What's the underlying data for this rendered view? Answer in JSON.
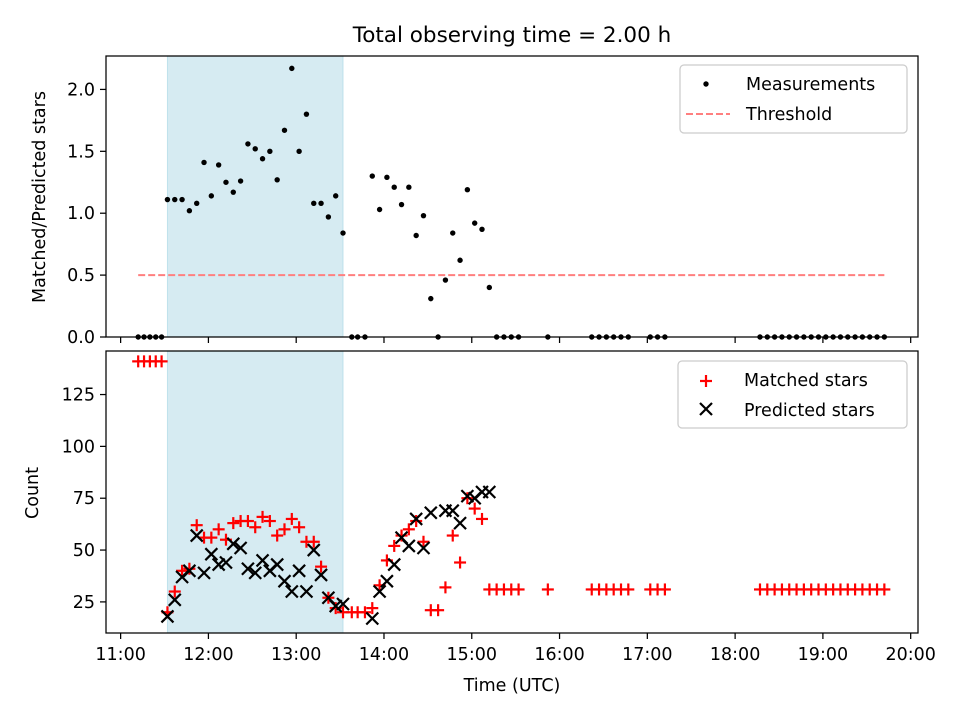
{
  "chart_data": [
    {
      "type": "scatter",
      "title": "Total observing time = 2.00 h",
      "xlabel": "",
      "ylabel": "Matched/Predicted stars",
      "ylim": [
        0,
        2.27
      ],
      "yticks": [
        0.0,
        0.5,
        1.0,
        1.5,
        2.0
      ],
      "yticklabels": [
        "0.0",
        "0.5",
        "1.0",
        "1.5",
        "2.0"
      ],
      "xlim": [
        "10:50",
        "20:05"
      ],
      "grid": false,
      "legend": "top-right",
      "shaded_span": {
        "from": "11:32",
        "to": "13:32",
        "color": "#add8e6"
      },
      "series": [
        {
          "name": "Measurements",
          "marker": "dot",
          "color": "#000000",
          "x": [
            "11:12",
            "11:16",
            "11:20",
            "11:24",
            "11:28",
            "11:32",
            "11:37",
            "11:42",
            "11:47",
            "11:52",
            "11:57",
            "12:02",
            "12:07",
            "12:12",
            "12:17",
            "12:22",
            "12:27",
            "12:32",
            "12:37",
            "12:42",
            "12:47",
            "12:52",
            "12:57",
            "13:02",
            "13:07",
            "13:12",
            "13:17",
            "13:22",
            "13:27",
            "13:32",
            "13:38",
            "13:42",
            "13:47",
            "13:52",
            "13:57",
            "14:02",
            "14:07",
            "14:12",
            "14:17",
            "14:22",
            "14:27",
            "14:32",
            "14:37",
            "14:42",
            "14:47",
            "14:52",
            "14:57",
            "15:02",
            "15:07",
            "15:12",
            "15:17",
            "15:22",
            "15:27",
            "15:32",
            "15:52",
            "16:22",
            "16:27",
            "16:32",
            "16:37",
            "16:42",
            "16:47",
            "17:02",
            "17:07",
            "17:12",
            "18:17",
            "18:22",
            "18:27",
            "18:32",
            "18:37",
            "18:42",
            "18:47",
            "18:52",
            "18:57",
            "19:02",
            "19:07",
            "19:12",
            "19:17",
            "19:22",
            "19:27",
            "19:32",
            "19:37",
            "19:42"
          ],
          "y": [
            0,
            0,
            0,
            0,
            0,
            1.11,
            1.11,
            1.11,
            1.02,
            1.08,
            1.41,
            1.14,
            1.39,
            1.25,
            1.17,
            1.26,
            1.56,
            1.52,
            1.44,
            1.5,
            1.27,
            1.67,
            2.17,
            1.5,
            1.8,
            1.08,
            1.08,
            0.97,
            1.14,
            0.84,
            0,
            0,
            0,
            1.3,
            1.03,
            1.29,
            1.21,
            1.07,
            1.21,
            0.82,
            0.98,
            0.31,
            0,
            0.46,
            0.84,
            0.62,
            1.19,
            0.92,
            0.87,
            0.4,
            0,
            0,
            0,
            0,
            0,
            0,
            0,
            0,
            0,
            0,
            0,
            0,
            0,
            0,
            0,
            0,
            0,
            0,
            0,
            0,
            0,
            0,
            0,
            0,
            0,
            0,
            0,
            0,
            0,
            0,
            0,
            0
          ]
        },
        {
          "name": "Threshold",
          "marker": "dashed-line",
          "color": "#ff7f7f",
          "x": [
            "11:12",
            "19:42"
          ],
          "y": [
            0.5,
            0.5
          ]
        }
      ]
    },
    {
      "type": "scatter",
      "title": "",
      "xlabel": "Time (UTC)",
      "ylabel": "Count",
      "ylim": [
        10,
        146
      ],
      "yticks": [
        25,
        50,
        75,
        100,
        125
      ],
      "yticklabels": [
        "25",
        "50",
        "75",
        "100",
        "125"
      ],
      "xticks": [
        "11:00",
        "12:00",
        "13:00",
        "14:00",
        "15:00",
        "16:00",
        "17:00",
        "18:00",
        "19:00",
        "20:00"
      ],
      "xlim": [
        "10:50",
        "20:05"
      ],
      "grid": false,
      "legend": "top-right",
      "shaded_span": {
        "from": "11:32",
        "to": "13:32",
        "color": "#add8e6"
      },
      "series": [
        {
          "name": "Matched stars",
          "marker": "plus",
          "color": "#ff0000",
          "x": [
            "11:12",
            "11:16",
            "11:20",
            "11:24",
            "11:28",
            "11:32",
            "11:37",
            "11:42",
            "11:47",
            "11:52",
            "11:57",
            "12:02",
            "12:07",
            "12:12",
            "12:17",
            "12:22",
            "12:27",
            "12:32",
            "12:37",
            "12:42",
            "12:47",
            "12:52",
            "12:57",
            "13:02",
            "13:07",
            "13:12",
            "13:17",
            "13:22",
            "13:27",
            "13:32",
            "13:38",
            "13:42",
            "13:47",
            "13:52",
            "13:57",
            "14:02",
            "14:07",
            "14:12",
            "14:17",
            "14:22",
            "14:27",
            "14:32",
            "14:37",
            "14:42",
            "14:47",
            "14:52",
            "14:57",
            "15:02",
            "15:07",
            "15:12",
            "15:17",
            "15:22",
            "15:27",
            "15:32",
            "15:52",
            "16:22",
            "16:27",
            "16:32",
            "16:37",
            "16:42",
            "16:47",
            "17:02",
            "17:07",
            "17:12",
            "18:17",
            "18:22",
            "18:27",
            "18:32",
            "18:37",
            "18:42",
            "18:47",
            "18:52",
            "18:57",
            "19:02",
            "19:07",
            "19:12",
            "19:17",
            "19:22",
            "19:27",
            "19:32",
            "19:37",
            "19:42"
          ],
          "y": [
            141,
            141,
            141,
            141,
            141,
            20,
            30,
            40,
            41,
            62,
            56,
            56,
            60,
            55,
            63,
            64,
            64,
            61,
            66,
            64,
            57,
            60,
            65,
            61,
            54,
            54,
            42,
            27,
            22,
            20,
            20,
            20,
            20,
            22,
            33,
            45,
            52,
            57,
            60,
            64,
            54,
            21,
            21,
            32,
            57,
            44,
            75,
            70,
            65,
            31,
            31,
            31,
            31,
            31,
            31,
            31,
            31,
            31,
            31,
            31,
            31,
            31,
            31,
            31,
            31,
            31,
            31,
            31,
            31,
            31,
            31,
            31,
            31,
            31,
            31,
            31,
            31,
            31,
            31,
            31,
            31,
            31
          ]
        },
        {
          "name": "Predicted stars",
          "marker": "x",
          "color": "#000000",
          "x": [
            "11:32",
            "11:37",
            "11:42",
            "11:47",
            "11:52",
            "11:57",
            "12:02",
            "12:07",
            "12:12",
            "12:17",
            "12:22",
            "12:27",
            "12:32",
            "12:37",
            "12:42",
            "12:47",
            "12:52",
            "12:57",
            "13:02",
            "13:07",
            "13:12",
            "13:17",
            "13:22",
            "13:27",
            "13:32",
            "13:52",
            "13:57",
            "14:02",
            "14:07",
            "14:12",
            "14:17",
            "14:22",
            "14:27",
            "14:32",
            "14:37",
            "14:42",
            "14:47",
            "14:52",
            "14:57",
            "15:02",
            "15:07",
            "15:12"
          ],
          "y": [
            18,
            26,
            37,
            40,
            57,
            39,
            48,
            43,
            44,
            53,
            51,
            41,
            39,
            45,
            40,
            43,
            35,
            30,
            40,
            30,
            50,
            38,
            27,
            23,
            24,
            17,
            30,
            35,
            43,
            56,
            52,
            65,
            51,
            68,
            null,
            69,
            69,
            63,
            76,
            75,
            78,
            78
          ]
        }
      ]
    }
  ]
}
